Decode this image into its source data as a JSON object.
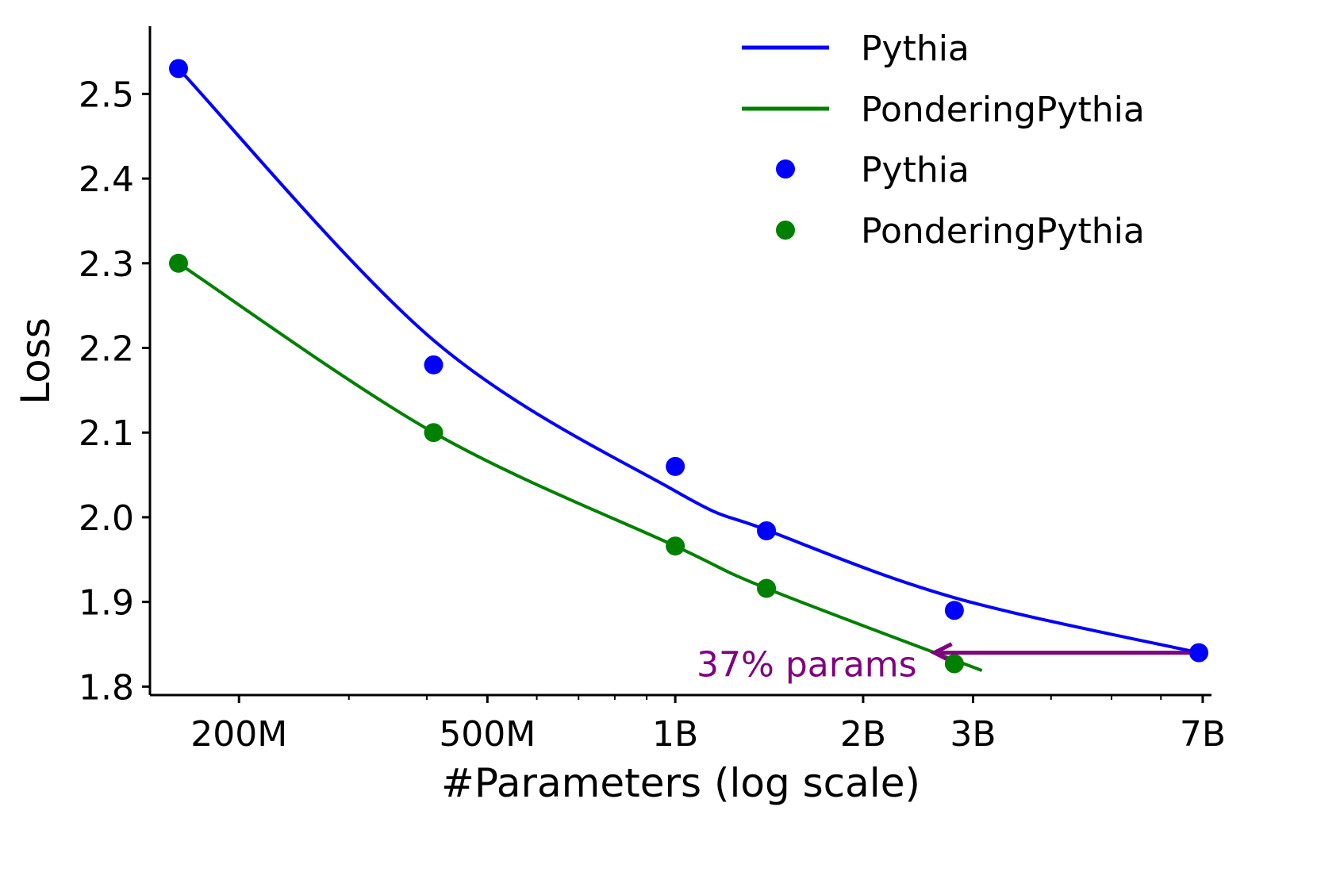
{
  "chart_data": {
    "type": "line",
    "title": "",
    "xlabel": "#Parameters (log scale)",
    "ylabel": "Loss",
    "xscale": "log",
    "xlim_billions": [
      0.144,
      7.23
    ],
    "ylim": [
      1.79,
      2.58
    ],
    "x_ticks": [
      {
        "value": 0.2,
        "label": "200M"
      },
      {
        "value": 0.5,
        "label": "500M"
      },
      {
        "value": 1,
        "label": "1B"
      },
      {
        "value": 2,
        "label": "2B"
      },
      {
        "value": 3,
        "label": "3B"
      },
      {
        "value": 7,
        "label": "7B"
      }
    ],
    "y_ticks": [
      {
        "value": 1.8,
        "label": "1.8"
      },
      {
        "value": 1.9,
        "label": "1.9"
      },
      {
        "value": 2.0,
        "label": "2.0"
      },
      {
        "value": 2.1,
        "label": "2.1"
      },
      {
        "value": 2.2,
        "label": "2.2"
      },
      {
        "value": 2.3,
        "label": "2.3"
      },
      {
        "value": 2.4,
        "label": "2.4"
      },
      {
        "value": 2.5,
        "label": "2.5"
      }
    ],
    "grid": false,
    "legend_position": "top-right",
    "legend": [
      "Pythia",
      "PonderingPythia",
      "Pythia",
      "PonderingPythia"
    ],
    "series": [
      {
        "name": "Pythia",
        "color": "#0000ff",
        "points_x_billions": [
          0.16,
          0.41,
          1.0,
          1.4,
          2.8,
          6.9
        ],
        "points_y": [
          2.53,
          2.18,
          2.06,
          1.984,
          1.89,
          1.84
        ],
        "fit_x_billions": [
          0.16,
          0.41,
          1.0,
          1.4,
          2.8,
          6.9
        ],
        "fit_y": [
          2.53,
          2.209,
          2.031,
          1.985,
          1.905,
          1.84
        ]
      },
      {
        "name": "PonderingPythia",
        "color": "#008000",
        "points_x_billions": [
          0.16,
          0.41,
          1.0,
          1.4,
          2.8
        ],
        "points_y": [
          2.3,
          2.1,
          1.966,
          1.916,
          1.827
        ],
        "fit_x_billions": [
          0.16,
          0.41,
          1.0,
          1.4,
          3.1
        ],
        "fit_y": [
          2.3,
          2.1,
          1.966,
          1.916,
          1.819
        ]
      }
    ],
    "annotation": {
      "text": "37% params",
      "color": "#800080",
      "arrow_from": {
        "x_billions": 6.9,
        "y": 1.84
      },
      "arrow_to": {
        "x_billions": 2.6,
        "y": 1.84
      }
    }
  }
}
